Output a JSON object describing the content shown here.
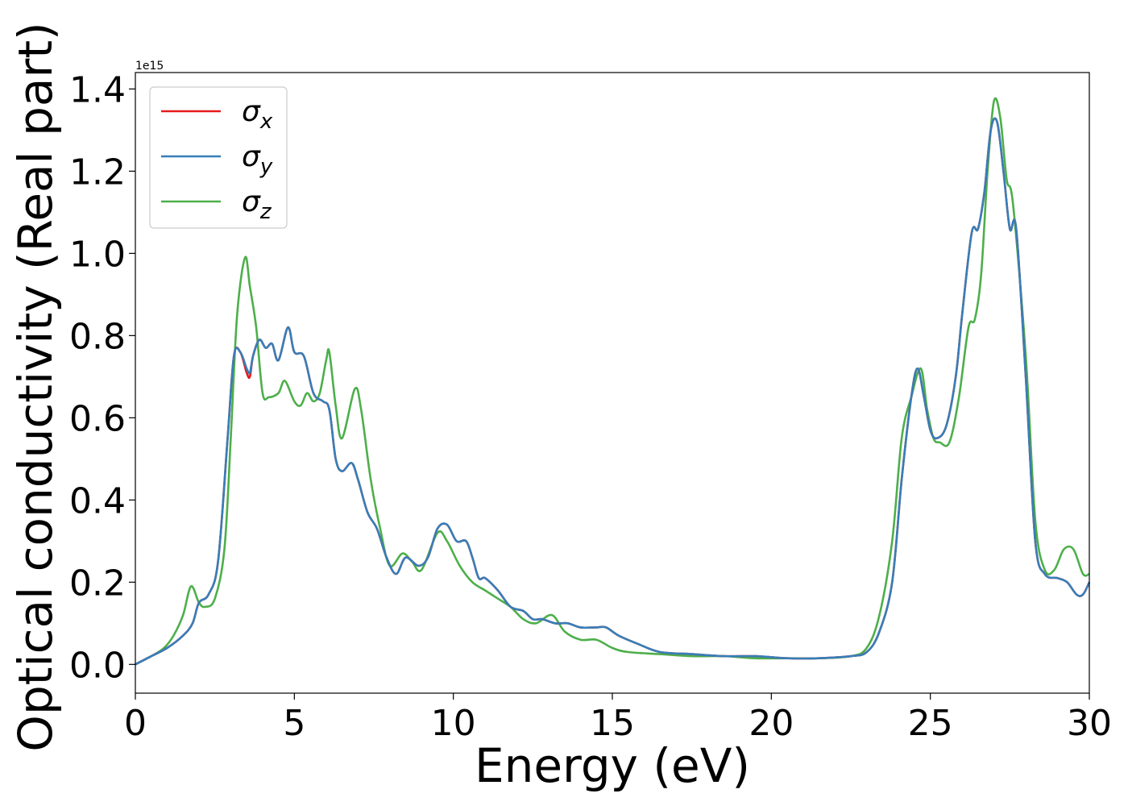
{
  "chart_data": {
    "type": "line",
    "title": "",
    "xlabel": "Energy (eV)",
    "ylabel": "Optical conductivity (Real part)",
    "y_offset_label": "1e15",
    "xlim": [
      0,
      30
    ],
    "ylim": [
      -0.07,
      1.44
    ],
    "x_ticks": [
      0,
      5,
      10,
      15,
      20,
      25,
      30
    ],
    "x_tick_labels": [
      "0",
      "5",
      "10",
      "15",
      "20",
      "25",
      "30"
    ],
    "y_ticks": [
      0.0,
      0.2,
      0.4,
      0.6,
      0.8,
      1.0,
      1.2,
      1.4
    ],
    "y_tick_labels": [
      "0.0",
      "0.2",
      "0.4",
      "0.6",
      "0.8",
      "1.0",
      "1.2",
      "1.4"
    ],
    "grid": false,
    "legend_placement": "top-left",
    "series": [
      {
        "name": "σx",
        "legend_base": "σ",
        "legend_sub": "x",
        "color": "#e41a1c",
        "x": [
          0,
          0.5,
          1,
          1.5,
          1.8,
          2.0,
          2.3,
          2.6,
          2.9,
          3.1,
          3.3,
          3.5,
          3.6,
          3.7,
          3.9,
          4.1,
          4.3,
          4.5,
          4.8,
          5.0,
          5.3,
          5.6,
          5.9,
          6.1,
          6.3,
          6.5,
          6.8,
          7.0,
          7.3,
          7.6,
          7.9,
          8.2,
          8.5,
          8.9,
          9.2,
          9.5,
          9.8,
          10.1,
          10.4,
          10.6,
          10.8,
          11.0,
          11.4,
          11.8,
          12.2,
          12.5,
          12.8,
          13.2,
          13.6,
          14.0,
          14.5,
          14.8,
          15.2,
          15.8,
          16.5,
          17.5,
          18.5,
          19.5,
          20.5,
          21.5,
          22.5,
          23.0,
          23.4,
          23.8,
          24.1,
          24.4,
          24.6,
          24.8,
          25.0,
          25.2,
          25.5,
          25.8,
          26.0,
          26.3,
          26.5,
          26.7,
          26.9,
          27.1,
          27.3,
          27.5,
          27.7,
          28.0,
          28.3,
          28.6,
          29.0,
          29.3,
          29.6,
          29.8,
          30.0
        ],
        "values": [
          0.0,
          0.02,
          0.04,
          0.07,
          0.1,
          0.15,
          0.17,
          0.25,
          0.55,
          0.75,
          0.76,
          0.71,
          0.7,
          0.75,
          0.79,
          0.77,
          0.78,
          0.74,
          0.82,
          0.76,
          0.75,
          0.66,
          0.64,
          0.62,
          0.5,
          0.47,
          0.49,
          0.45,
          0.37,
          0.33,
          0.26,
          0.22,
          0.26,
          0.24,
          0.26,
          0.33,
          0.34,
          0.3,
          0.3,
          0.26,
          0.21,
          0.21,
          0.18,
          0.14,
          0.13,
          0.11,
          0.11,
          0.1,
          0.1,
          0.09,
          0.09,
          0.09,
          0.07,
          0.05,
          0.03,
          0.025,
          0.02,
          0.02,
          0.015,
          0.015,
          0.02,
          0.03,
          0.08,
          0.2,
          0.45,
          0.65,
          0.72,
          0.65,
          0.57,
          0.55,
          0.58,
          0.7,
          0.85,
          1.05,
          1.06,
          1.15,
          1.3,
          1.32,
          1.2,
          1.06,
          1.06,
          0.7,
          0.3,
          0.22,
          0.21,
          0.2,
          0.17,
          0.17,
          0.2
        ]
      },
      {
        "name": "σy",
        "legend_base": "σ",
        "legend_sub": "y",
        "color": "#377eb8",
        "x": [
          0,
          0.5,
          1,
          1.5,
          1.8,
          2.0,
          2.3,
          2.6,
          2.9,
          3.1,
          3.3,
          3.5,
          3.6,
          3.7,
          3.9,
          4.1,
          4.3,
          4.5,
          4.8,
          5.0,
          5.3,
          5.6,
          5.9,
          6.1,
          6.3,
          6.5,
          6.8,
          7.0,
          7.3,
          7.6,
          7.9,
          8.2,
          8.5,
          8.9,
          9.2,
          9.5,
          9.8,
          10.1,
          10.4,
          10.6,
          10.8,
          11.0,
          11.4,
          11.8,
          12.2,
          12.5,
          12.8,
          13.2,
          13.6,
          14.0,
          14.5,
          14.8,
          15.2,
          15.8,
          16.5,
          17.5,
          18.5,
          19.5,
          20.5,
          21.5,
          22.5,
          23.0,
          23.4,
          23.8,
          24.1,
          24.4,
          24.6,
          24.8,
          25.0,
          25.2,
          25.5,
          25.8,
          26.0,
          26.3,
          26.5,
          26.7,
          26.9,
          27.1,
          27.3,
          27.5,
          27.7,
          28.0,
          28.3,
          28.6,
          29.0,
          29.3,
          29.6,
          29.8,
          30.0
        ],
        "values": [
          0.0,
          0.02,
          0.04,
          0.07,
          0.1,
          0.15,
          0.17,
          0.25,
          0.55,
          0.75,
          0.76,
          0.72,
          0.71,
          0.75,
          0.79,
          0.77,
          0.78,
          0.74,
          0.82,
          0.76,
          0.75,
          0.66,
          0.64,
          0.62,
          0.5,
          0.47,
          0.49,
          0.45,
          0.37,
          0.33,
          0.26,
          0.22,
          0.26,
          0.24,
          0.26,
          0.33,
          0.34,
          0.3,
          0.3,
          0.26,
          0.21,
          0.21,
          0.18,
          0.14,
          0.13,
          0.11,
          0.11,
          0.1,
          0.1,
          0.09,
          0.09,
          0.09,
          0.07,
          0.05,
          0.03,
          0.025,
          0.02,
          0.02,
          0.015,
          0.015,
          0.02,
          0.03,
          0.08,
          0.2,
          0.45,
          0.65,
          0.72,
          0.65,
          0.57,
          0.55,
          0.58,
          0.7,
          0.85,
          1.05,
          1.06,
          1.15,
          1.3,
          1.32,
          1.2,
          1.06,
          1.06,
          0.7,
          0.3,
          0.22,
          0.21,
          0.2,
          0.17,
          0.17,
          0.2
        ]
      },
      {
        "name": "σz",
        "legend_base": "σ",
        "legend_sub": "z",
        "color": "#4daf4a",
        "x": [
          0,
          0.5,
          0.9,
          1.2,
          1.5,
          1.75,
          2.0,
          2.2,
          2.5,
          2.8,
          3.0,
          3.2,
          3.45,
          3.6,
          3.8,
          4.0,
          4.2,
          4.5,
          4.7,
          5.0,
          5.2,
          5.4,
          5.6,
          5.8,
          6.0,
          6.1,
          6.3,
          6.5,
          6.9,
          7.1,
          7.4,
          7.7,
          8.0,
          8.4,
          8.7,
          9.0,
          9.5,
          9.8,
          10.2,
          10.6,
          11.0,
          11.4,
          11.8,
          12.2,
          12.6,
          13.1,
          13.5,
          14.0,
          14.5,
          15.0,
          15.5,
          16.5,
          17.5,
          18.5,
          19.5,
          20.5,
          21.5,
          22.5,
          23.0,
          23.4,
          23.8,
          24.1,
          24.4,
          24.7,
          24.9,
          25.1,
          25.3,
          25.6,
          25.9,
          26.2,
          26.4,
          26.6,
          26.8,
          27.0,
          27.2,
          27.4,
          27.6,
          28.0,
          28.3,
          28.6,
          28.9,
          29.2,
          29.5,
          29.8,
          30.0
        ],
        "values": [
          0.0,
          0.02,
          0.04,
          0.07,
          0.12,
          0.19,
          0.15,
          0.14,
          0.16,
          0.28,
          0.55,
          0.85,
          0.99,
          0.92,
          0.82,
          0.66,
          0.65,
          0.66,
          0.69,
          0.64,
          0.63,
          0.66,
          0.64,
          0.66,
          0.74,
          0.76,
          0.63,
          0.55,
          0.67,
          0.62,
          0.45,
          0.33,
          0.24,
          0.27,
          0.25,
          0.23,
          0.32,
          0.3,
          0.24,
          0.2,
          0.18,
          0.16,
          0.14,
          0.11,
          0.1,
          0.12,
          0.08,
          0.06,
          0.06,
          0.04,
          0.03,
          0.025,
          0.02,
          0.02,
          0.015,
          0.015,
          0.015,
          0.02,
          0.04,
          0.12,
          0.3,
          0.55,
          0.65,
          0.72,
          0.62,
          0.55,
          0.54,
          0.54,
          0.65,
          0.82,
          0.84,
          0.95,
          1.2,
          1.37,
          1.33,
          1.18,
          1.12,
          0.75,
          0.35,
          0.23,
          0.23,
          0.28,
          0.28,
          0.22,
          0.22
        ]
      }
    ]
  }
}
